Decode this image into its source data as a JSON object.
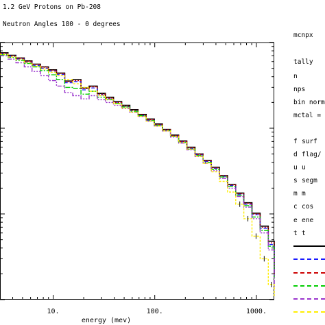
{
  "header": {
    "title": "1.2 GeV Protons on Pb-208",
    "subtitle": "Neutron Angles 180 - 0 degrees"
  },
  "side_panel": {
    "code": "mcnpx",
    "lines": [
      "tally",
      "n",
      "nps",
      "bin norme",
      "mctal = i"
    ],
    "params": [
      {
        "key": "f",
        "val": "surf"
      },
      {
        "key": "d",
        "val": "flag/"
      },
      {
        "key": "u",
        "val": "u"
      },
      {
        "key": "s",
        "val": "segm"
      },
      {
        "key": "m",
        "val": "m"
      },
      {
        "key": "c",
        "val": "cos"
      },
      {
        "key": "e",
        "val": "ene"
      },
      {
        "key": "t",
        "val": "t"
      }
    ]
  },
  "chart_data": {
    "type": "line",
    "title": "1.2 GeV Protons on Pb-208",
    "subtitle": "Neutron Angles 180 - 0 degrees",
    "xlabel": "energy (mev)",
    "ylabel": "",
    "xscale": "log",
    "yscale": "log",
    "xlim": [
      3,
      1500
    ],
    "xticks": [
      {
        "value": 10,
        "label": "10."
      },
      {
        "value": 100,
        "label": "100."
      },
      {
        "value": 1000,
        "label": "1000."
      }
    ],
    "ylim": [
      0.001,
      1
    ],
    "grid": false,
    "legend_position": "right",
    "x": [
      3,
      3.6,
      4.3,
      5.2,
      6.2,
      7.5,
      9,
      10.8,
      13,
      15.6,
      18.8,
      22.6,
      27.2,
      32.7,
      39.3,
      47.3,
      56.9,
      68.4,
      82.3,
      99,
      119,
      143,
      172,
      207,
      249,
      299,
      360,
      433,
      521,
      626,
      753,
      905,
      1089,
      1310,
      1500
    ],
    "series": [
      {
        "color": "#000000",
        "dash": "",
        "values": [
          0.76,
          0.71,
          0.66,
          0.61,
          0.56,
          0.52,
          0.48,
          0.44,
          0.355,
          0.37,
          0.295,
          0.31,
          0.255,
          0.23,
          0.205,
          0.185,
          0.165,
          0.145,
          0.128,
          0.112,
          0.097,
          0.083,
          0.071,
          0.06,
          0.05,
          0.042,
          0.035,
          0.028,
          0.022,
          0.0175,
          0.0135,
          0.0102,
          0.0072,
          0.0048,
          0.002
        ]
      },
      {
        "color": "#1a1aff",
        "dash": "5,3",
        "values": [
          0.74,
          0.69,
          0.64,
          0.59,
          0.54,
          0.5,
          0.465,
          0.425,
          0.34,
          0.35,
          0.28,
          0.295,
          0.245,
          0.22,
          0.198,
          0.178,
          0.16,
          0.141,
          0.124,
          0.109,
          0.095,
          0.081,
          0.069,
          0.058,
          0.049,
          0.041,
          0.034,
          0.0275,
          0.0215,
          0.017,
          0.013,
          0.0098,
          0.0068,
          0.0044,
          0.0018
        ]
      },
      {
        "color": "#cc0000",
        "dash": "2,2",
        "values": [
          0.75,
          0.7,
          0.655,
          0.605,
          0.555,
          0.515,
          0.475,
          0.435,
          0.35,
          0.36,
          0.29,
          0.305,
          0.25,
          0.225,
          0.2,
          0.181,
          0.162,
          0.143,
          0.126,
          0.11,
          0.096,
          0.082,
          0.07,
          0.059,
          0.0495,
          0.0415,
          0.0345,
          0.0278,
          0.0218,
          0.0172,
          0.0133,
          0.01,
          0.007,
          0.0046,
          0.0019
        ]
      },
      {
        "color": "#00cc00",
        "dash": "7,2,2,2",
        "values": [
          0.72,
          0.67,
          0.62,
          0.57,
          0.52,
          0.47,
          0.42,
          0.37,
          0.3,
          0.29,
          0.25,
          0.27,
          0.23,
          0.215,
          0.195,
          0.177,
          0.158,
          0.14,
          0.123,
          0.108,
          0.094,
          0.08,
          0.068,
          0.057,
          0.048,
          0.04,
          0.033,
          0.027,
          0.021,
          0.0165,
          0.0125,
          0.0092,
          0.0064,
          0.0042,
          0.0017
        ]
      },
      {
        "color": "#9933cc",
        "dash": "6,2,2,2,2,2",
        "values": [
          0.7,
          0.64,
          0.58,
          0.52,
          0.46,
          0.41,
          0.36,
          0.31,
          0.26,
          0.24,
          0.22,
          0.24,
          0.215,
          0.2,
          0.185,
          0.17,
          0.153,
          0.137,
          0.121,
          0.106,
          0.093,
          0.079,
          0.067,
          0.056,
          0.047,
          0.039,
          0.032,
          0.026,
          0.02,
          0.016,
          0.012,
          0.0088,
          0.006,
          0.0038,
          0.0014
        ]
      },
      {
        "color": "#ffee00",
        "dash": "3,2",
        "values": [
          0.73,
          0.68,
          0.63,
          0.58,
          0.53,
          0.49,
          0.45,
          0.41,
          0.37,
          0.33,
          0.3,
          0.27,
          0.24,
          0.215,
          0.192,
          0.172,
          0.154,
          0.137,
          0.121,
          0.106,
          0.093,
          0.08,
          0.068,
          0.057,
          0.047,
          0.039,
          0.031,
          0.024,
          0.018,
          0.013,
          0.0088,
          0.0055,
          0.003,
          0.0015,
          0.0011
        ]
      }
    ]
  }
}
